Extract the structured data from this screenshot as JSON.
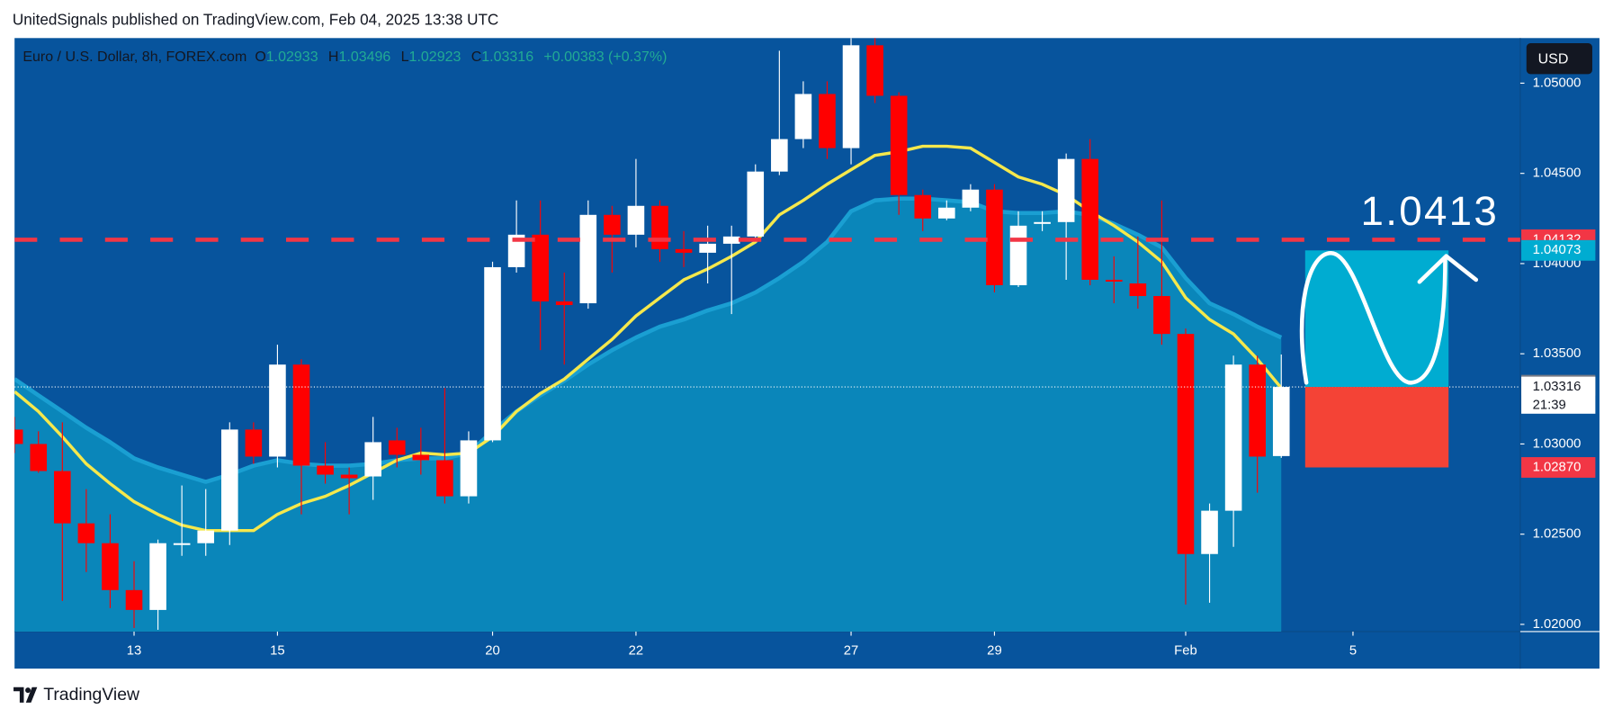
{
  "header": {
    "text": "UnitedSignals published on TradingView.com, Feb 04, 2025 13:38 UTC"
  },
  "footer": {
    "brand": "TradingView"
  },
  "chart_data": {
    "type": "candlestick",
    "title": "Euro / U.S. Dollar, 8h, FOREX.com",
    "ohlc_letters": [
      "O",
      "H",
      "L",
      "C"
    ],
    "change": "+0.00383 (+0.37%)",
    "currency": "USD",
    "open": [
      1.0308,
      1.03,
      1.0285,
      1.0256,
      1.0245,
      1.0219,
      1.0208,
      1.0244,
      1.0245,
      1.0252,
      1.0308,
      1.0293,
      1.0344,
      1.0288,
      1.0283,
      1.0282,
      1.0302,
      1.0294,
      1.0291,
      1.0271,
      1.0302,
      1.0398,
      1.0416,
      1.0379,
      1.0378,
      1.0427,
      1.0416,
      1.0432,
      1.0408,
      1.0406,
      1.0411,
      1.0415,
      1.0451,
      1.0469,
      1.0494,
      1.0464,
      1.0521,
      1.0493,
      1.0438,
      1.0425,
      1.0431,
      1.0441,
      1.0388,
      1.0422,
      1.0423,
      1.0458,
      1.0391,
      1.0389,
      1.0382,
      1.0361,
      1.0239,
      1.0263,
      1.0344,
      1.02933
    ],
    "high": [
      1.0315,
      1.0307,
      1.0312,
      1.0275,
      1.0261,
      1.0235,
      1.0247,
      1.0277,
      1.0275,
      1.0312,
      1.0312,
      1.0355,
      1.0347,
      1.0301,
      1.0287,
      1.0315,
      1.0309,
      1.0309,
      1.0331,
      1.0307,
      1.0401,
      1.0435,
      1.0435,
      1.0395,
      1.0435,
      1.0432,
      1.0458,
      1.0435,
      1.0418,
      1.0421,
      1.0421,
      1.0455,
      1.0518,
      1.0501,
      1.0501,
      1.0525,
      1.0525,
      1.0495,
      1.0441,
      1.0435,
      1.0444,
      1.0444,
      1.0429,
      1.0429,
      1.0461,
      1.0469,
      1.0404,
      1.0415,
      1.0435,
      1.0364,
      1.0267,
      1.0349,
      1.0349,
      1.03496
    ],
    "low": [
      1.0295,
      1.0284,
      1.0213,
      1.0229,
      1.0209,
      1.0198,
      1.0197,
      1.0238,
      1.0238,
      1.0244,
      1.0289,
      1.0287,
      1.0261,
      1.0278,
      1.0261,
      1.0269,
      1.0287,
      1.0283,
      1.0267,
      1.0267,
      1.0301,
      1.0395,
      1.0352,
      1.0344,
      1.0375,
      1.0395,
      1.0409,
      1.0401,
      1.0398,
      1.0389,
      1.0372,
      1.0412,
      1.0449,
      1.0464,
      1.0458,
      1.0455,
      1.0489,
      1.0427,
      1.0418,
      1.0424,
      1.0429,
      1.0384,
      1.0387,
      1.0418,
      1.0391,
      1.0388,
      1.0378,
      1.0375,
      1.0355,
      1.0211,
      1.0212,
      1.0243,
      1.0273,
      1.02923
    ],
    "close": [
      1.03,
      1.0285,
      1.0256,
      1.0245,
      1.0219,
      1.0208,
      1.0245,
      1.0245,
      1.0252,
      1.0308,
      1.0293,
      1.0344,
      1.0288,
      1.0283,
      1.0281,
      1.0301,
      1.0294,
      1.0291,
      1.0271,
      1.0302,
      1.0398,
      1.0416,
      1.0379,
      1.0377,
      1.0427,
      1.0416,
      1.0432,
      1.0408,
      1.0406,
      1.0411,
      1.0415,
      1.0451,
      1.0469,
      1.0494,
      1.0464,
      1.0521,
      1.0493,
      1.0438,
      1.0425,
      1.0431,
      1.0441,
      1.0388,
      1.0421,
      1.0423,
      1.0458,
      1.0391,
      1.039,
      1.0382,
      1.0361,
      1.0239,
      1.0263,
      1.0344,
      1.0293,
      1.03316
    ],
    "up_color": "#ffffff",
    "down_color": "#ff0000",
    "series": [
      {
        "color": "#1a9fd2",
        "fill": "#0a86ba",
        "values": [
          1.0336,
          1.0327,
          1.0318,
          1.0309,
          1.0301,
          1.0292,
          1.0287,
          1.0283,
          1.0279,
          1.0283,
          1.0288,
          1.0291,
          1.0289,
          1.0288,
          1.0288,
          1.0289,
          1.0291,
          1.0292,
          1.0292,
          1.0295,
          1.0307,
          1.0318,
          1.0327,
          1.0335,
          1.0344,
          1.0352,
          1.0359,
          1.0365,
          1.0369,
          1.0374,
          1.0378,
          1.0384,
          1.0392,
          1.0401,
          1.0412,
          1.0429,
          1.0435,
          1.0436,
          1.0436,
          1.0435,
          1.0434,
          1.0429,
          1.0428,
          1.0428,
          1.0429,
          1.0427,
          1.0422,
          1.0416,
          1.0409,
          1.0392,
          1.0378,
          1.0372,
          1.0365,
          1.0359
        ]
      },
      {
        "color": "#f5e84c",
        "values": [
          1.0329,
          1.0318,
          1.0304,
          1.0289,
          1.0278,
          1.0268,
          1.0261,
          1.0255,
          1.0252,
          1.0252,
          1.0252,
          1.0261,
          1.0267,
          1.0271,
          1.0277,
          1.0284,
          1.0291,
          1.0295,
          1.0294,
          1.0295,
          1.0304,
          1.0318,
          1.0328,
          1.0336,
          1.0347,
          1.0358,
          1.0371,
          1.0381,
          1.0391,
          1.0397,
          1.0404,
          1.0412,
          1.0427,
          1.0435,
          1.0444,
          1.0452,
          1.046,
          1.0462,
          1.0465,
          1.0465,
          1.0464,
          1.0456,
          1.0448,
          1.0444,
          1.0438,
          1.0429,
          1.0421,
          1.0412,
          1.0401,
          1.0381,
          1.0369,
          1.0361,
          1.0347,
          1.0331
        ]
      }
    ],
    "xlim": [
      0,
      63
    ],
    "xticks": [
      {
        "value": 5,
        "label": "13"
      },
      {
        "value": 11,
        "label": "15"
      },
      {
        "value": 20,
        "label": "20"
      },
      {
        "value": 26,
        "label": "22"
      },
      {
        "value": 35,
        "label": "27"
      },
      {
        "value": 41,
        "label": "29"
      },
      {
        "value": 49,
        "label": "Feb"
      },
      {
        "value": 56,
        "label": "5"
      }
    ],
    "ylim": [
      1.0196,
      1.0525
    ],
    "yticks": [
      {
        "value": 1.02,
        "label": "1.02000"
      },
      {
        "value": 1.025,
        "label": "1.02500"
      },
      {
        "value": 1.03,
        "label": "1.03000"
      },
      {
        "value": 1.035,
        "label": "1.03500"
      },
      {
        "value": 1.04,
        "label": "1.04000"
      },
      {
        "value": 1.045,
        "label": "1.04500"
      },
      {
        "value": 1.05,
        "label": "1.05000"
      }
    ],
    "markers": [
      {
        "price": 1.04132,
        "color": "#f23645",
        "dashed": true
      },
      {
        "price": 1.04073,
        "color": "#00acd1"
      },
      {
        "price": 1.03326,
        "color": "#787b86"
      },
      {
        "price": 1.03316,
        "color": "#ffffff",
        "time": "21:39",
        "dotted": true
      },
      {
        "price": {
          "value": 1.0287,
          "label": "1.02870"
        },
        "color": "#f23645"
      }
    ],
    "position": {
      "x": [
        54,
        60
      ],
      "target": 1.04073,
      "entry": 1.03316,
      "stop": 1.0287,
      "profit_color": "#00acd1",
      "loss_color": "#f44336"
    },
    "annotation": "1.0413"
  }
}
